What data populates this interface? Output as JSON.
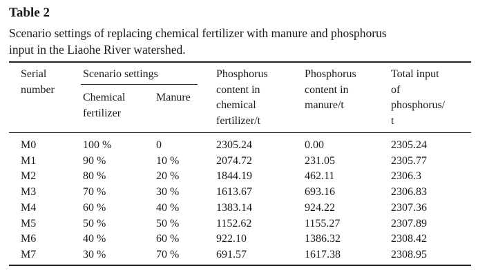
{
  "table_label": "Table 2",
  "caption_line1": "Scenario settings of replacing chemical fertilizer with manure and phosphorus",
  "caption_line2": "input in the Liaohe River watershed.",
  "headers": {
    "serial_line1": "Serial",
    "serial_line2": "number",
    "scenario_group": "Scenario settings",
    "chem_line1": "Chemical",
    "chem_line2": "fertilizer",
    "manure": "Manure",
    "p_chem_lines": [
      "Phosphorus",
      "content in",
      "chemical",
      "fertilizer/t"
    ],
    "p_manure_lines": [
      "Phosphorus",
      "content in",
      "manure/t"
    ],
    "total_lines": [
      "Total input",
      "of",
      "phosphorus/",
      "t"
    ]
  },
  "rows": [
    {
      "serial": "M0",
      "chem": "100 %",
      "manure": "0",
      "p_chem": "2305.24",
      "p_manure": "0.00",
      "total": "2305.24"
    },
    {
      "serial": "M1",
      "chem": "90 %",
      "manure": "10 %",
      "p_chem": "2074.72",
      "p_manure": "231.05",
      "total": "2305.77"
    },
    {
      "serial": "M2",
      "chem": "80 %",
      "manure": "20 %",
      "p_chem": "1844.19",
      "p_manure": "462.11",
      "total": "2306.3"
    },
    {
      "serial": "M3",
      "chem": "70 %",
      "manure": "30 %",
      "p_chem": "1613.67",
      "p_manure": "693.16",
      "total": "2306.83"
    },
    {
      "serial": "M4",
      "chem": "60 %",
      "manure": "40 %",
      "p_chem": "1383.14",
      "p_manure": "924.22",
      "total": "2307.36"
    },
    {
      "serial": "M5",
      "chem": "50 %",
      "manure": "50 %",
      "p_chem": "1152.62",
      "p_manure": "1155.27",
      "total": "2307.89"
    },
    {
      "serial": "M6",
      "chem": "40 %",
      "manure": "60 %",
      "p_chem": "922.10",
      "p_manure": "1386.32",
      "total": "2308.42"
    },
    {
      "serial": "M7",
      "chem": "30 %",
      "manure": "70 %",
      "p_chem": "691.57",
      "p_manure": "1617.38",
      "total": "2308.95"
    }
  ]
}
